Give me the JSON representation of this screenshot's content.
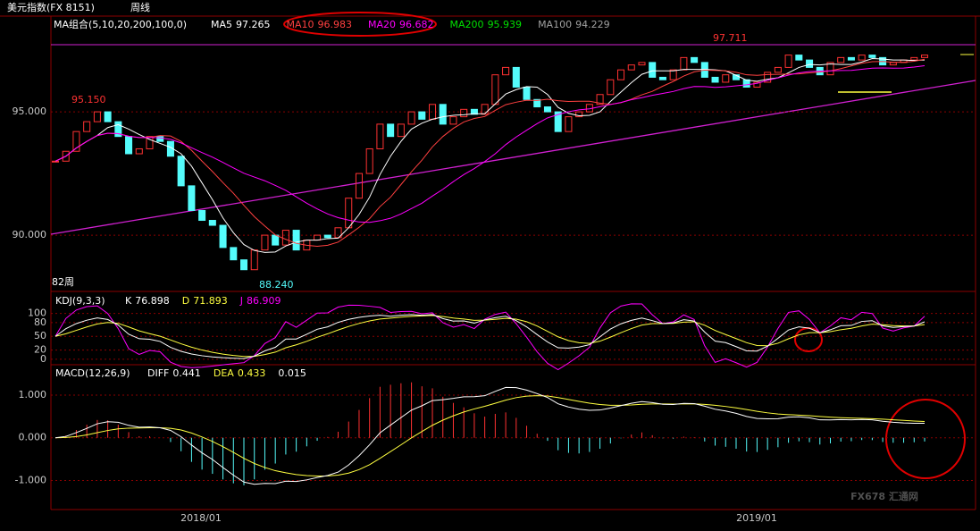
{
  "header": {
    "symbol": "美元指数(FX 8151)",
    "period": "周线"
  },
  "chart_data": {
    "type": "candlestick",
    "indicator_title": "MA组合(5,10,20,200,100,0)",
    "legend": [
      {
        "name": "MA5",
        "value": 97.265,
        "color": "#ffffff"
      },
      {
        "name": "MA10",
        "value": 96.983,
        "color": "#ff4040"
      },
      {
        "name": "MA20",
        "value": 96.682,
        "color": "#ff00ff"
      },
      {
        "name": "MA200",
        "value": 95.939,
        "color": "#00e000"
      },
      {
        "name": "MA100",
        "value": 94.229,
        "color": "#a0a0a0"
      }
    ],
    "closes": [
      93.0,
      93.4,
      94.2,
      94.6,
      95.0,
      94.6,
      94.0,
      93.3,
      93.5,
      94.0,
      93.8,
      93.2,
      92.0,
      91.0,
      90.6,
      90.4,
      89.5,
      89.0,
      88.6,
      89.4,
      90.0,
      89.6,
      90.2,
      89.4,
      89.8,
      90.0,
      89.9,
      90.3,
      91.5,
      92.5,
      93.5,
      94.5,
      94.0,
      94.5,
      95.0,
      94.7,
      95.3,
      94.5,
      94.8,
      95.1,
      94.9,
      95.3,
      96.5,
      96.8,
      96.0,
      95.5,
      95.2,
      95.0,
      94.2,
      94.8,
      95.0,
      95.3,
      95.7,
      96.3,
      96.7,
      96.9,
      97.0,
      96.4,
      96.3,
      96.7,
      97.2,
      97.0,
      96.4,
      96.2,
      96.5,
      96.3,
      96.0,
      96.2,
      96.6,
      96.8,
      97.3,
      97.1,
      96.8,
      96.5,
      97.0,
      97.2,
      97.1,
      97.3,
      97.2,
      96.9,
      97.0,
      97.1,
      97.2,
      97.3
    ],
    "up_color": "#ff3232",
    "down_color": "#54fcfc",
    "ylim": [
      87.72,
      98.88
    ],
    "yticks": [
      {
        "value": 90,
        "label": "90.000"
      },
      {
        "value": 95,
        "label": "95.000"
      }
    ],
    "annotations": [
      "95.150",
      "97.711",
      "88.240",
      "82周"
    ],
    "x_labels": [
      "2018/01",
      "2019/01"
    ],
    "kdj": {
      "title": "KDJ(9,3,3)",
      "values": [
        {
          "name": "K",
          "value": 76.898,
          "color": "#ffffff"
        },
        {
          "name": "D",
          "value": 71.893,
          "color": "#ffff40"
        },
        {
          "name": "J",
          "value": 86.909,
          "color": "#ff00ff"
        }
      ],
      "ylim": [
        -10,
        146
      ],
      "yticks": [
        0,
        20,
        50,
        80,
        100
      ]
    },
    "macd": {
      "title": "MACD(12,26,9)",
      "values": [
        {
          "name": "DIFF",
          "value": 0.441,
          "color": "#ffffff"
        },
        {
          "name": "DEA",
          "value": 0.433,
          "color": "#ffff40"
        },
        {
          "name": "",
          "value": 0.015,
          "color": "#ffffff"
        }
      ],
      "ylim": [
        -1.66,
        1.69
      ],
      "yticks": [
        {
          "value": -1,
          "label": "-1.000"
        },
        {
          "value": 0,
          "label": "0.000"
        },
        {
          "value": 1,
          "label": "1.000"
        }
      ]
    },
    "watermark": "FX678 汇通网"
  }
}
